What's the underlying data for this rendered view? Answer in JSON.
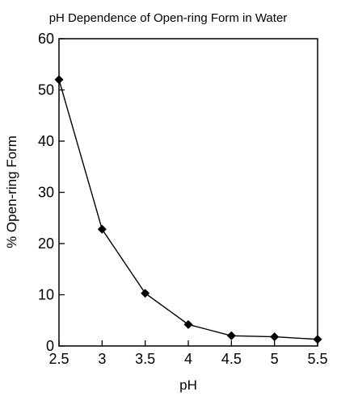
{
  "chart_data": {
    "type": "line",
    "title": "pH Dependence of Open-ring Form in Water",
    "xlabel": "pH",
    "ylabel": "% Open-ring Form",
    "xlim": [
      2.5,
      5.5
    ],
    "ylim": [
      0,
      60
    ],
    "x_ticks": [
      "2.5",
      "3",
      "3.5",
      "4",
      "4.5",
      "5",
      "5.5"
    ],
    "y_ticks": [
      "0",
      "10",
      "20",
      "30",
      "40",
      "50",
      "60"
    ],
    "grid": false,
    "legend": "none",
    "marker": "diamond",
    "line_color": "#000000",
    "series": [
      {
        "x": [
          2.5,
          3.0,
          3.5,
          4.0,
          4.5,
          5.0,
          5.5
        ],
        "y": [
          52,
          22.8,
          10.3,
          4.2,
          2.0,
          1.8,
          1.3
        ]
      }
    ]
  }
}
